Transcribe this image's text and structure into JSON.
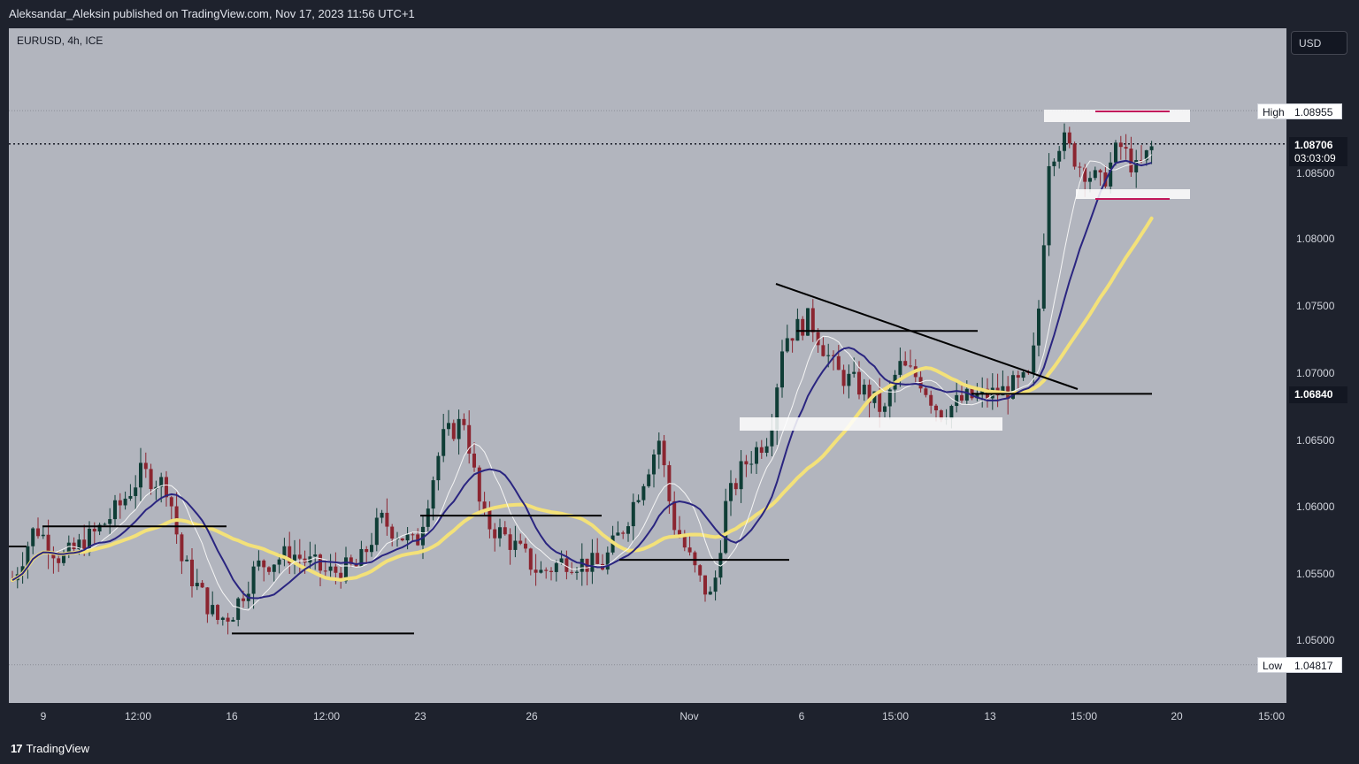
{
  "header": {
    "published_text": "Aleksandar_Aleksin published on TradingView.com, Nov 17, 2023 11:56 UTC+1"
  },
  "chart": {
    "symbol": "EURUSD, 4h, ICE",
    "currency_button": "USD",
    "price_axis": [
      "1.08500",
      "1.08000",
      "1.07500",
      "1.07000",
      "1.06500",
      "1.06000",
      "1.05500",
      "1.05000"
    ],
    "high_label": "High",
    "high_value": "1.08955",
    "low_label": "Low",
    "low_value": "1.04817",
    "current_price": "1.08706",
    "countdown": "03:03:09",
    "level_price": "1.06840",
    "time_axis": [
      "9",
      "12:00",
      "16",
      "12:00",
      "23",
      "26",
      "Nov",
      "6",
      "15:00",
      "13",
      "15:00",
      "20",
      "15:00"
    ]
  },
  "footer": {
    "logo_mark": "17",
    "brand": "TradingView"
  },
  "colors": {
    "background": "#1e222d",
    "chart_bg": "#b2b5be",
    "bull_candle": "#0f3d36",
    "bear_candle": "#8b2530",
    "ma_fast": "#f5f5f5",
    "ma_mid": "#2a2580",
    "ma_slow": "#f3e179",
    "zone": "#ffffff",
    "marker": "#c2185b"
  },
  "chart_data": {
    "type": "candlestick",
    "title": "EURUSD, 4h, ICE",
    "y_range": [
      1.0475,
      1.0925
    ],
    "high": 1.08955,
    "low": 1.04817,
    "last": 1.08706,
    "key_level": 1.0684,
    "notes": "EURUSD 4h candles from early Nov 9 (Oct) to Nov 17; breakout above descending trendline and 1.0684 level; consolidation range roughly 1.0835–1.0895"
  }
}
